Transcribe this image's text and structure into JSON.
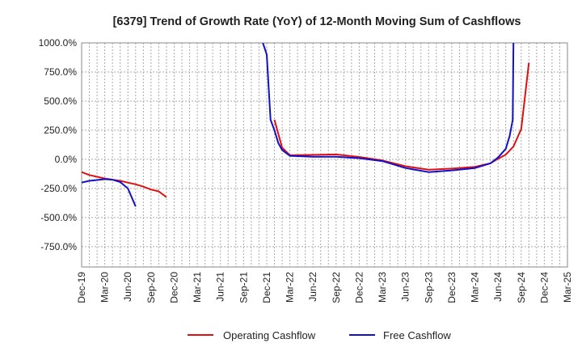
{
  "chart_data": {
    "type": "line",
    "title": "[6379]  Trend of Growth Rate (YoY) of 12-Month Moving Sum of Cashflows",
    "xlabel": "",
    "ylabel": "",
    "ylim": [
      -925,
      1000
    ],
    "yticks": [
      1000,
      750,
      500,
      250,
      0,
      -250,
      -500,
      -750
    ],
    "ytick_labels": [
      "1000.0%",
      "750.0%",
      "500.0%",
      "250.0%",
      "0.0%",
      "-250.0%",
      "-500.0%",
      "-750.0%"
    ],
    "x_unit": "months since Dec-19",
    "xlim": [
      0,
      63
    ],
    "xticks": [
      0,
      3,
      6,
      9,
      12,
      15,
      18,
      21,
      24,
      27,
      30,
      33,
      36,
      39,
      42,
      45,
      48,
      51,
      54,
      57,
      60,
      63
    ],
    "xtick_labels": [
      "Dec-19",
      "Mar-20",
      "Jun-20",
      "Sep-20",
      "Dec-20",
      "Mar-21",
      "Jun-21",
      "Sep-21",
      "Dec-21",
      "Mar-22",
      "Jun-22",
      "Sep-22",
      "Dec-22",
      "Mar-23",
      "Jun-23",
      "Sep-23",
      "Dec-23",
      "Mar-24",
      "Jun-24",
      "Sep-24",
      "Dec-24",
      "Mar-25"
    ],
    "grid": true,
    "legend_position": "bottom",
    "series": [
      {
        "name": "Operating Cashflow",
        "color": "#dd1111",
        "segments": [
          [
            [
              0,
              -110
            ],
            [
              1,
              -135
            ],
            [
              2,
              -150
            ],
            [
              3,
              -165
            ],
            [
              4,
              -175
            ],
            [
              5,
              -185
            ],
            [
              6,
              -200
            ],
            [
              7,
              -215
            ],
            [
              8,
              -235
            ],
            [
              9,
              -260
            ],
            [
              10,
              -275
            ],
            [
              11,
              -325
            ]
          ],
          [
            [
              25,
              340
            ],
            [
              26,
              100
            ],
            [
              27,
              35
            ],
            [
              30,
              38
            ],
            [
              33,
              42
            ],
            [
              36,
              20
            ],
            [
              39,
              -10
            ],
            [
              42,
              -60
            ],
            [
              45,
              -90
            ],
            [
              48,
              -80
            ],
            [
              51,
              -65
            ],
            [
              53,
              -35
            ],
            [
              54,
              5
            ],
            [
              55,
              40
            ],
            [
              56,
              110
            ],
            [
              57,
              260
            ],
            [
              58,
              830
            ]
          ]
        ]
      },
      {
        "name": "Free Cashflow",
        "color": "#1111cc",
        "segments": [
          [
            [
              0,
              -200
            ],
            [
              1,
              -185
            ],
            [
              2,
              -178
            ],
            [
              3,
              -170
            ],
            [
              4,
              -175
            ],
            [
              5,
              -195
            ],
            [
              6,
              -250
            ],
            [
              7,
              -405
            ]
          ],
          [
            [
              23.5,
              1000
            ],
            [
              24,
              900
            ],
            [
              24.5,
              340
            ],
            [
              25,
              250
            ],
            [
              25.5,
              140
            ],
            [
              26,
              80
            ],
            [
              27,
              30
            ],
            [
              30,
              22
            ],
            [
              33,
              22
            ],
            [
              36,
              10
            ],
            [
              39,
              -15
            ],
            [
              42,
              -75
            ],
            [
              45,
              -110
            ],
            [
              48,
              -95
            ],
            [
              51,
              -75
            ],
            [
              53,
              -35
            ],
            [
              54,
              15
            ],
            [
              55,
              90
            ],
            [
              55.5,
              200
            ],
            [
              55.9,
              340
            ],
            [
              56,
              1000
            ]
          ]
        ]
      }
    ]
  }
}
